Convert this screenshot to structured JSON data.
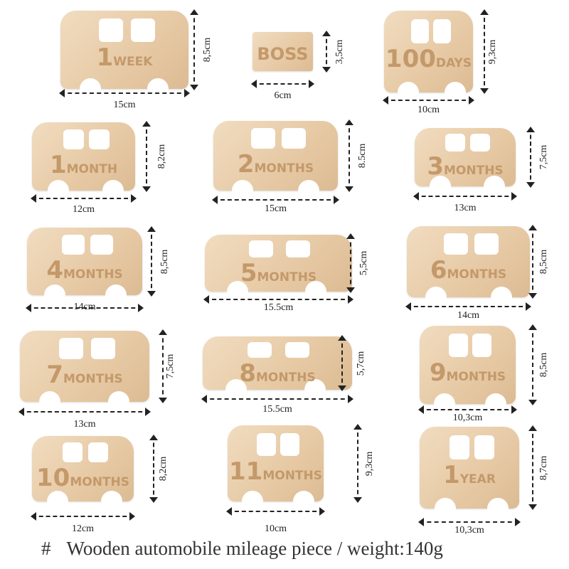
{
  "pieces": [
    {
      "number": "1",
      "word": "WEEK",
      "width": "15cm",
      "height": "8,5cm"
    },
    {
      "number": "",
      "word": "BOSS",
      "width": "6cm",
      "height": "3,5cm"
    },
    {
      "number": "100",
      "word": "DAYS",
      "width": "10cm",
      "height": "9,3cm"
    },
    {
      "number": "1",
      "word": "MONTH",
      "width": "12cm",
      "height": "8,2cm"
    },
    {
      "number": "2",
      "word": "MONTHS",
      "width": "15cm",
      "height": "8.5cm"
    },
    {
      "number": "3",
      "word": "MONTHS",
      "width": "13cm",
      "height": "7,5cm"
    },
    {
      "number": "4",
      "word": "MONTHS",
      "width": "14cm",
      "height": "8,5cm"
    },
    {
      "number": "5",
      "word": "MONTHS",
      "width": "15.5cm",
      "height": "5,5cm"
    },
    {
      "number": "6",
      "word": "MONTHS",
      "width": "14cm",
      "height": "8,5cm"
    },
    {
      "number": "7",
      "word": "MONTHS",
      "width": "13cm",
      "height": "7,5cm"
    },
    {
      "number": "8",
      "word": "MONTHS",
      "width": "15.5cm",
      "height": "5,7cm"
    },
    {
      "number": "9",
      "word": "MONTHS",
      "width": "10,3cm",
      "height": "8,5cm"
    },
    {
      "number": "10",
      "word": "MONTHS",
      "width": "12cm",
      "height": "8,2cm"
    },
    {
      "number": "11",
      "word": "MONTHS",
      "width": "10cm",
      "height": "9,3cm"
    },
    {
      "number": "1",
      "word": "YEAR",
      "width": "10,3cm",
      "height": "8,7cm"
    }
  ],
  "caption": {
    "hash": "#",
    "text": "Wooden automobile mileage piece / weight:140g"
  }
}
